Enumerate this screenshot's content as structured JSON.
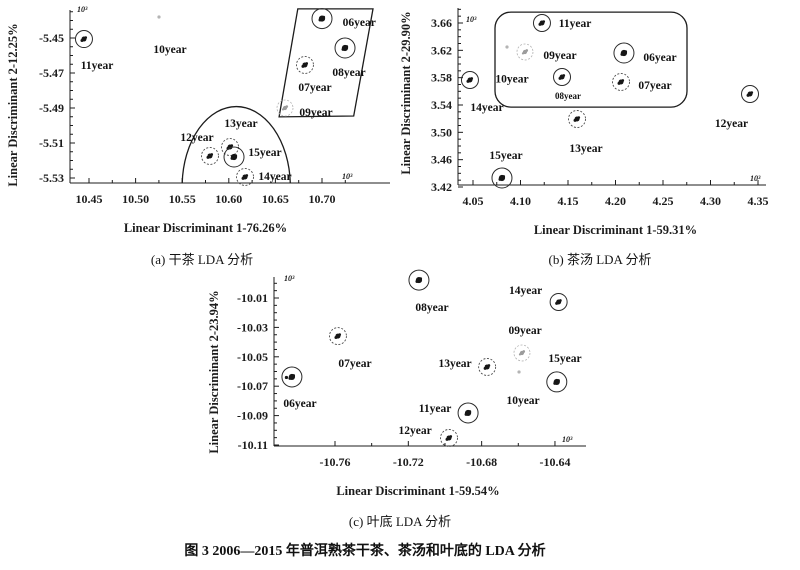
{
  "figure": {
    "caption": "图 3  2006—2015 年普洱熟茶干茶、茶汤和叶底的 LDA 分析"
  },
  "chart_data": [
    {
      "id": "a",
      "type": "scatter",
      "caption": "(a) 干茶 LDA 分析",
      "xlabel": "Linear Discriminant 1-76.26%",
      "ylabel": "Linear Discriminant 2-12.25%",
      "scale_marker": "10³",
      "xlim": [
        10.425,
        10.775
      ],
      "ylim": [
        -5.539,
        -5.433
      ],
      "x_ticks": [
        10.45,
        10.5,
        10.55,
        10.6,
        10.65,
        10.7
      ],
      "y_ticks": [
        -5.45,
        -5.47,
        -5.49,
        -5.51,
        -5.53
      ],
      "grid": false,
      "points": [
        {
          "label": "11year",
          "x": 10.4446,
          "y": -5.4506,
          "style": "circled",
          "weight": "normal",
          "label_at": [
            10.4586,
            -5.4654
          ]
        },
        {
          "label": "10year",
          "x": 10.5251,
          "y": -5.438,
          "style": "speck",
          "label_at": [
            10.5369,
            -5.4563
          ]
        },
        {
          "label": "06year",
          "x": 10.7,
          "y": -5.4389,
          "style": "circled",
          "weight": "bold",
          "label_at": [
            10.74,
            -5.4409
          ]
        },
        {
          "label": "08year",
          "x": 10.7247,
          "y": -5.4557,
          "style": "circled",
          "weight": "bold",
          "label_at": [
            10.729,
            -5.4694
          ]
        },
        {
          "label": "07year",
          "x": 10.6817,
          "y": -5.4654,
          "style": "dotted",
          "weight": "normal",
          "label_at": [
            10.6925,
            -5.478
          ]
        },
        {
          "label": "09year",
          "x": 10.6603,
          "y": -5.49,
          "style": "faint-dotted",
          "label_at": [
            10.6936,
            -5.4923
          ]
        },
        {
          "label": "13year",
          "x": 10.6013,
          "y": -5.5123,
          "style": "dotted",
          "weight": "normal",
          "label_at": [
            10.6131,
            -5.4986
          ]
        },
        {
          "label": "12year",
          "x": 10.5798,
          "y": -5.5174,
          "style": "dotted",
          "weight": "normal",
          "label_at": [
            10.5659,
            -5.5066
          ]
        },
        {
          "label": "15year",
          "x": 10.6056,
          "y": -5.518,
          "style": "circled",
          "weight": "bold",
          "label_at": [
            10.6388,
            -5.5151
          ]
        },
        {
          "label": "14year",
          "x": 10.6174,
          "y": -5.5294,
          "style": "dotted",
          "weight": "normal",
          "label_at": [
            10.6496,
            -5.5289
          ]
        }
      ],
      "annotations": [
        {
          "type": "polygon",
          "points": [
            [
              10.674,
              -5.4334
            ],
            [
              10.7547,
              -5.4334
            ],
            [
              10.734,
              -5.4946
            ],
            [
              10.654,
              -5.4951
            ]
          ]
        },
        {
          "type": "dome",
          "cx": 10.608,
          "base_y": -5.5329,
          "rx": 0.058,
          "ry": 0.0457
        }
      ]
    },
    {
      "id": "b",
      "type": "scatter",
      "caption": "(b) 茶汤 LDA 分析",
      "xlabel": "Linear Discriminant 1-59.31%",
      "ylabel": "Linear Discriminant 2-29.90%",
      "scale_marker": "10³",
      "xlim": [
        4.03,
        4.37
      ],
      "ylim": [
        3.415,
        3.685
      ],
      "x_ticks": [
        4.05,
        4.1,
        4.15,
        4.2,
        4.25,
        4.3,
        4.35
      ],
      "y_ticks": [
        3.66,
        3.62,
        3.58,
        3.54,
        3.5,
        3.46,
        3.42
      ],
      "grid": false,
      "points": [
        {
          "label": "11year",
          "x": 4.1226,
          "y": 3.66,
          "style": "circled",
          "weight": "normal",
          "label_at": [
            4.1574,
            3.66
          ]
        },
        {
          "label": "10year",
          "x": 4.0858,
          "y": 3.6249,
          "style": "speck",
          "label_at": [
            4.0911,
            3.579
          ]
        },
        {
          "label": "09year",
          "x": 4.1047,
          "y": 3.6176,
          "style": "faint-dotted",
          "label_at": [
            4.1416,
            3.6132
          ]
        },
        {
          "label": "06year",
          "x": 4.2089,
          "y": 3.6161,
          "style": "circled",
          "weight": "bold",
          "label_at": [
            4.2468,
            3.6102
          ]
        },
        {
          "label": "14year",
          "x": 4.0468,
          "y": 3.5766,
          "style": "circled",
          "weight": "normal",
          "label_at": [
            4.0647,
            3.537
          ]
        },
        {
          "label": "08year",
          "x": 4.1437,
          "y": 3.581,
          "style": "circled",
          "weight": "normal",
          "small_label": true,
          "label_at": [
            4.15,
            3.5546
          ]
        },
        {
          "label": "07year",
          "x": 4.2058,
          "y": 3.5737,
          "style": "dotted",
          "weight": "normal",
          "label_at": [
            4.2416,
            3.5693
          ]
        },
        {
          "label": "12year",
          "x": 4.3416,
          "y": 3.5561,
          "style": "circled",
          "weight": "normal",
          "label_at": [
            4.3221,
            3.5136
          ]
        },
        {
          "label": "13year",
          "x": 4.1595,
          "y": 3.5195,
          "style": "dotted",
          "weight": "normal",
          "label_at": [
            4.1689,
            3.477
          ]
        },
        {
          "label": "15year",
          "x": 4.0805,
          "y": 3.4332,
          "style": "circled",
          "weight": "bold",
          "label_at": [
            4.0847,
            3.4668
          ]
        }
      ],
      "annotations": [
        {
          "type": "rounded_rect",
          "x1": 4.0732,
          "y1": 3.676,
          "x2": 4.2753,
          "y2": 3.537,
          "r": 16
        }
      ]
    },
    {
      "id": "c",
      "type": "scatter",
      "caption": "(c) 叶底 LDA 分析",
      "xlabel": "Linear Discriminant 1-59.54%",
      "ylabel": "Linear Discriminant 2-23.94%",
      "scale_marker": "10³",
      "xlim": [
        -10.79,
        -10.62
      ],
      "ylim": [
        -10.115,
        -9.995
      ],
      "x_ticks": [
        -10.76,
        -10.72,
        -10.68,
        -10.64
      ],
      "y_ticks": [
        -10.01,
        -10.03,
        -10.05,
        -10.07,
        -10.09,
        -10.11
      ],
      "grid": false,
      "points": [
        {
          "label": "08year",
          "x": -10.7142,
          "y": -9.9978,
          "style": "circled",
          "weight": "bold",
          "label_at": [
            -10.7071,
            -10.0161
          ]
        },
        {
          "label": "14year",
          "x": -10.638,
          "y": -10.0127,
          "style": "circled",
          "weight": "normal",
          "label_at": [
            -10.656,
            -10.0046
          ]
        },
        {
          "label": "07year",
          "x": -10.7584,
          "y": -10.0359,
          "style": "dotted",
          "weight": "normal",
          "label_at": [
            -10.7491,
            -10.0542
          ]
        },
        {
          "label": "09year",
          "x": -10.658,
          "y": -10.0474,
          "style": "faint-dotted",
          "label_at": [
            -10.6563,
            -10.0318
          ]
        },
        {
          "label": "13year",
          "x": -10.677,
          "y": -10.0569,
          "style": "dotted",
          "weight": "normal",
          "label_at": [
            -10.6945,
            -10.0542
          ]
        },
        {
          "label": "15year",
          "x": -10.639,
          "y": -10.0671,
          "style": "circled",
          "weight": "bold",
          "label_at": [
            -10.6345,
            -10.0508
          ]
        },
        {
          "label": "06year",
          "x": -10.7835,
          "y": -10.0637,
          "style": "circled",
          "weight": "bold",
          "marker": "double",
          "label_at": [
            -10.7791,
            -10.0814
          ]
        },
        {
          "label": "10year",
          "x": -10.6596,
          "y": -10.0603,
          "style": "speck",
          "label_at": [
            -10.6574,
            -10.0794
          ]
        },
        {
          "label": "11year",
          "x": -10.6874,
          "y": -10.0882,
          "style": "circled",
          "weight": "bold",
          "label_at": [
            -10.7054,
            -10.0848
          ]
        },
        {
          "label": "12year",
          "x": -10.6978,
          "y": -10.1052,
          "style": "dotted",
          "weight": "normal",
          "label_at": [
            -10.7163,
            -10.0998
          ]
        }
      ],
      "annotations": []
    }
  ]
}
